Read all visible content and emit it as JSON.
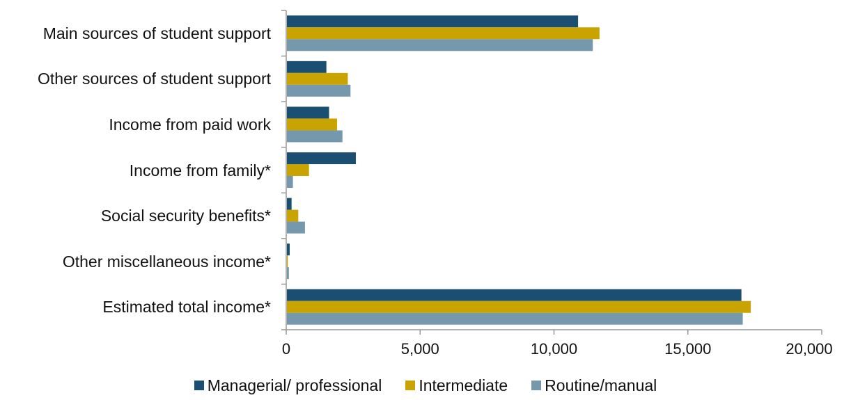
{
  "chart_data": {
    "type": "bar",
    "orientation": "horizontal",
    "categories": [
      "Main sources of student support",
      "Other sources of student support",
      "Income from paid work",
      "Income from family*",
      "Social security benefits*",
      "Other miscellaneous income*",
      "Estimated total income*"
    ],
    "series": [
      {
        "name": "Managerial/ professional",
        "color": "#1b4f72",
        "values": [
          10900,
          1500,
          1600,
          2600,
          200,
          130,
          17000
        ]
      },
      {
        "name": "Intermediate",
        "color": "#c9a400",
        "values": [
          11700,
          2300,
          1900,
          850,
          450,
          60,
          17350
        ]
      },
      {
        "name": "Routine/manual",
        "color": "#7698ad",
        "values": [
          11450,
          2400,
          2100,
          250,
          700,
          100,
          17050
        ]
      }
    ],
    "xlim": [
      0,
      20000
    ],
    "xticks": [
      "0",
      "5,000",
      "10,000",
      "15,000",
      "20,000"
    ],
    "xtick_values": [
      0,
      5000,
      10000,
      15000,
      20000
    ],
    "grid": false,
    "legend_position": "bottom"
  }
}
